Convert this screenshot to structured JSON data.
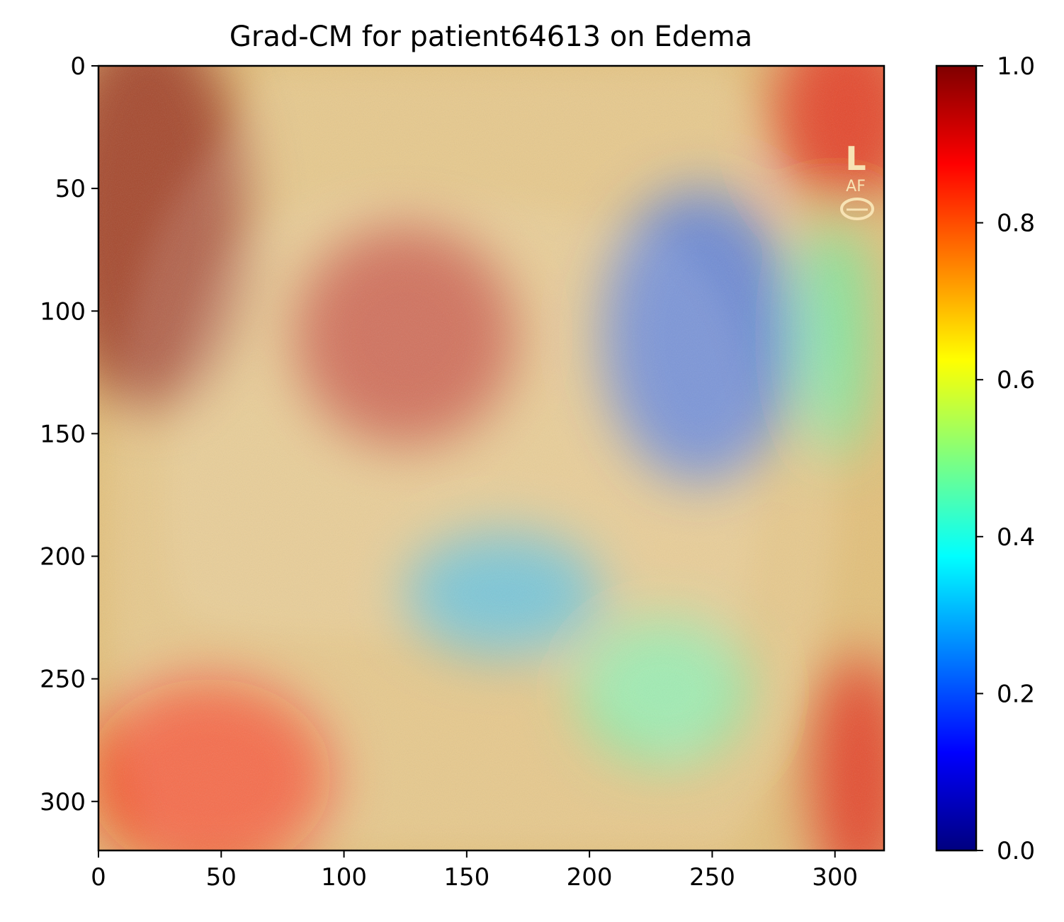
{
  "chart_data": {
    "type": "heatmap",
    "title": "Grad-CM for patient64613 on Edema",
    "xlabel": "",
    "ylabel": "",
    "xlim": [
      0,
      320
    ],
    "ylim": [
      320,
      0
    ],
    "x_ticks": [
      0,
      50,
      100,
      150,
      200,
      250,
      300
    ],
    "y_ticks": [
      0,
      50,
      100,
      150,
      200,
      250,
      300
    ],
    "colorbar": {
      "colormap": "jet",
      "range": [
        0.0,
        1.0
      ],
      "ticks": [
        "0.0",
        "0.2",
        "0.4",
        "0.6",
        "0.8",
        "1.0"
      ],
      "stops": [
        "#00007f",
        "#0000ff",
        "#007fff",
        "#00ffff",
        "#7fff7f",
        "#ffff00",
        "#ff7f00",
        "#ff0000",
        "#7f0000"
      ]
    },
    "overlay_base_image": "lateral chest x-ray",
    "overlay_marker_text": [
      "L",
      "AF"
    ],
    "heat_regions": [
      {
        "cx": 20,
        "cy": 60,
        "rx": 40,
        "ry": 80,
        "value": 1.0
      },
      {
        "cx": 125,
        "cy": 110,
        "rx": 45,
        "ry": 45,
        "value": 0.95
      },
      {
        "cx": 305,
        "cy": 20,
        "rx": 30,
        "ry": 40,
        "value": 0.9
      },
      {
        "cx": 310,
        "cy": 290,
        "rx": 20,
        "ry": 50,
        "value": 0.9
      },
      {
        "cx": 45,
        "cy": 290,
        "rx": 50,
        "ry": 40,
        "value": 0.85
      },
      {
        "cx": 245,
        "cy": 110,
        "rx": 40,
        "ry": 60,
        "value": 0.2
      },
      {
        "cx": 165,
        "cy": 215,
        "rx": 40,
        "ry": 25,
        "value": 0.3
      },
      {
        "cx": 230,
        "cy": 255,
        "rx": 35,
        "ry": 30,
        "value": 0.45
      },
      {
        "cx": 300,
        "cy": 110,
        "rx": 15,
        "ry": 50,
        "value": 0.45
      }
    ]
  }
}
